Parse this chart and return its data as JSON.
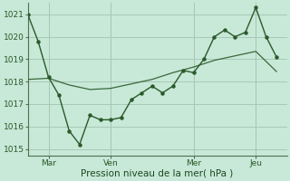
{
  "xlabel": "Pression niveau de la mer( hPa )",
  "bg_color": "#c8e8d8",
  "grid_color": "#a8c8b8",
  "line_color": "#2a5a2a",
  "ylim": [
    1014.7,
    1021.5
  ],
  "yticks": [
    1015,
    1016,
    1017,
    1018,
    1019,
    1020,
    1021
  ],
  "x_tick_labels": [
    "Mar",
    "Ven",
    "Mer",
    "Jeu"
  ],
  "x_tick_positions": [
    2,
    8,
    16,
    22
  ],
  "xlim": [
    0,
    25
  ],
  "vline_positions": [
    2,
    8,
    16,
    22
  ],
  "fc_x": [
    0,
    1,
    2,
    3,
    4,
    5,
    6,
    7,
    8,
    9,
    10,
    11,
    12,
    13,
    14,
    15,
    16,
    17,
    18,
    19,
    20,
    21,
    22,
    23,
    24
  ],
  "fc_y": [
    1021.0,
    1019.8,
    1018.2,
    1017.4,
    1015.8,
    1015.2,
    1016.5,
    1016.3,
    1016.3,
    1016.4,
    1017.2,
    1017.5,
    1017.8,
    1017.5,
    1017.8,
    1018.5,
    1018.4,
    1019.0,
    1020.0,
    1020.3,
    1020.0,
    1020.2,
    1021.3,
    1020.0,
    1019.1
  ],
  "trend_x": [
    0,
    2,
    4,
    6,
    8,
    10,
    12,
    14,
    16,
    18,
    20,
    22,
    24
  ],
  "trend_y": [
    1018.1,
    1018.15,
    1017.85,
    1017.65,
    1017.7,
    1017.9,
    1018.1,
    1018.4,
    1018.65,
    1018.95,
    1019.15,
    1019.35,
    1018.45
  ]
}
